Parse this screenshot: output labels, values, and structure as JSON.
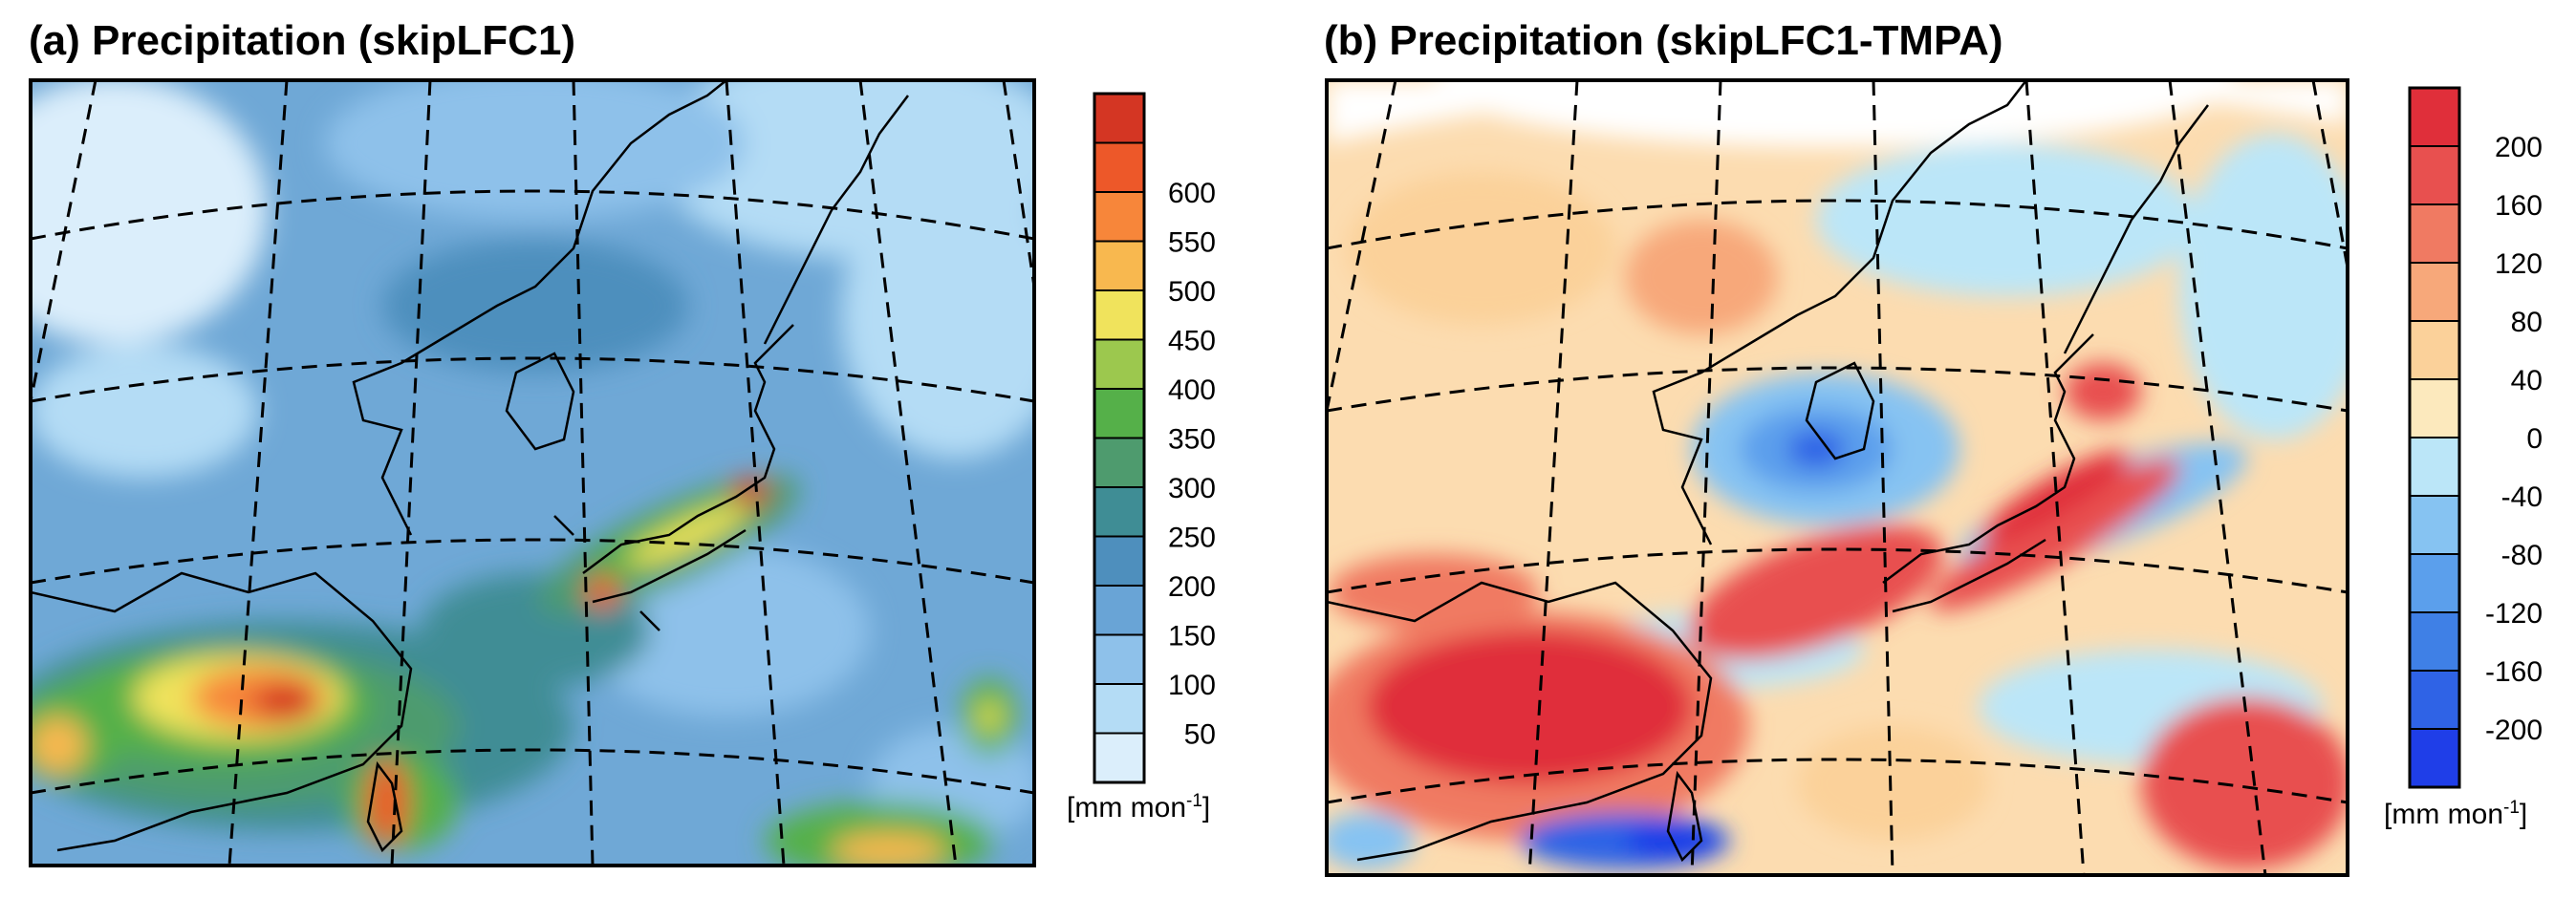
{
  "chart_data": [
    {
      "type": "heatmap",
      "title": "(a) Precipitation (skipLFC1)",
      "variable": "Precipitation",
      "experiment": "skipLFC1",
      "colorbar": {
        "levels": [
          50,
          100,
          150,
          200,
          250,
          300,
          350,
          400,
          450,
          500,
          550,
          600
        ],
        "labels": [
          "50",
          "100",
          "150",
          "200",
          "250",
          "300",
          "350",
          "400",
          "450",
          "500",
          "550",
          "600"
        ],
        "colors": [
          "#dbeefb",
          "#b4dcf5",
          "#8ec1ea",
          "#69a4d6",
          "#4e8fbd",
          "#3f8d95",
          "#4e9b6e",
          "#55b049",
          "#9cc84e",
          "#f0e35c",
          "#f8b84f",
          "#f7863a",
          "#ed5829",
          "#d43623"
        ],
        "unit_base": "[mm mon",
        "unit_exp": "-1",
        "unit_tail": "]"
      }
    },
    {
      "type": "heatmap",
      "title": "(b) Precipitation (skipLFC1-TMPA)",
      "variable": "Precipitation",
      "experiment": "skipLFC1-TMPA",
      "colorbar": {
        "levels": [
          -200,
          -160,
          -120,
          -80,
          -40,
          0,
          40,
          80,
          120,
          160,
          200
        ],
        "labels": [
          "-200",
          "-160",
          "-120",
          "-80",
          "-40",
          "0",
          "40",
          "80",
          "120",
          "160",
          "200"
        ],
        "colors": [
          "#1f3ee8",
          "#2f63e6",
          "#3f80e6",
          "#5b9fec",
          "#86c3f2",
          "#bbe6f8",
          "#fce9bd",
          "#fbd19a",
          "#f7a87a",
          "#f07a62",
          "#e8504f",
          "#e02f3a"
        ],
        "unit_base": "[mm mon",
        "unit_exp": "-1",
        "unit_tail": "]"
      }
    }
  ],
  "palette": {
    "a_background": "#6fa8d6",
    "b_background": "#fcdcb0",
    "frame": "#000000",
    "graticule": "#000000",
    "coast": "#000000"
  }
}
